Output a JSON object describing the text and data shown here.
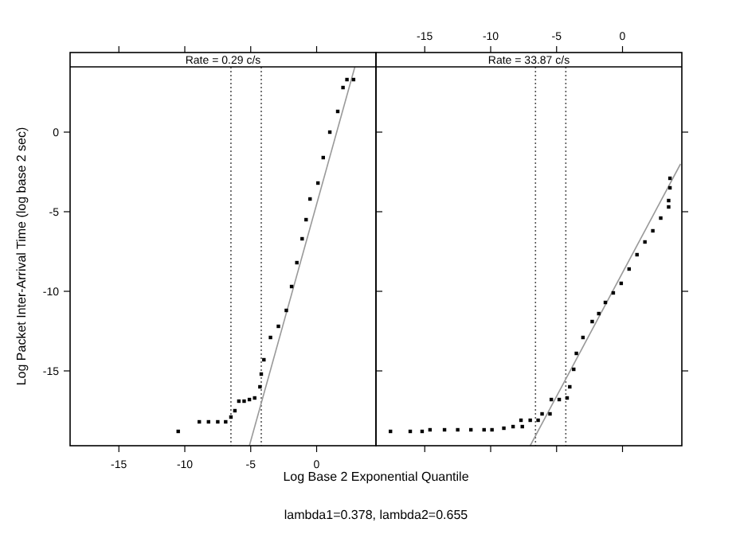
{
  "chart_data": [
    {
      "type": "scatter",
      "title": "Rate = 0.29 c/s",
      "xlabel": "Log Base 2 Exponential Quantile",
      "ylabel": "Log Packet Inter-Arrival Time (log base 2 sec)",
      "annotations": [
        "lambda1=0.378, lambda2=0.655"
      ],
      "xlim": [
        -18.7,
        4.5
      ],
      "ylim": [
        -19.7,
        4.1
      ],
      "xticks": [
        -15,
        -10,
        -5,
        0
      ],
      "yticks": [
        -15,
        -10,
        -5,
        0
      ],
      "grid": false,
      "marker": "square",
      "ref_lines": [
        {
          "axis": "x",
          "value": -6.5,
          "color": "#555555",
          "line_style": "dotted"
        },
        {
          "axis": "x",
          "value": -4.2,
          "color": "#555555",
          "line_style": "dotted"
        }
      ],
      "series": [
        {
          "color": "#000000",
          "x": [
            -10.5,
            -8.9,
            -8.2,
            -7.5,
            -6.9,
            -6.5,
            -6.2,
            -5.9,
            -5.5,
            -5.1,
            -4.7,
            -4.3,
            -4.2,
            -4.0,
            -3.5,
            -2.9,
            -2.3,
            -1.9,
            -1.5,
            -1.1,
            -0.8,
            -0.5,
            0.1,
            0.5,
            1.0,
            1.6,
            2.0,
            2.3,
            2.8
          ],
          "values": [
            -18.8,
            -18.2,
            -18.2,
            -18.2,
            -18.2,
            -17.9,
            -17.5,
            -16.9,
            -16.9,
            -16.8,
            -16.7,
            -16.0,
            -15.2,
            -14.3,
            -12.9,
            -12.2,
            -11.2,
            -9.7,
            -8.2,
            -6.7,
            -5.5,
            -4.2,
            -3.2,
            -1.6,
            0,
            1.3,
            2.8,
            3.3,
            3.3
          ]
        },
        {
          "type": "line",
          "color": "#999999",
          "marker": "none",
          "x": [
            -5.1,
            2.9
          ],
          "values": [
            -19.7,
            4.1
          ]
        }
      ]
    },
    {
      "type": "scatter",
      "title": "Rate = 33.87 c/s",
      "xlim": [
        -18.7,
        4.5
      ],
      "ylim": [
        -19.7,
        4.1
      ],
      "xticks": [
        -15,
        -10,
        -5,
        0
      ],
      "yticks": [
        -15,
        -10,
        -5,
        0
      ],
      "tick_labels": "x",
      "grid": false,
      "marker": "square",
      "ref_lines": [
        {
          "axis": "x",
          "value": -6.6,
          "color": "#555555",
          "line_style": "dotted"
        },
        {
          "axis": "x",
          "value": -4.3,
          "color": "#555555",
          "line_style": "dotted"
        }
      ],
      "series": [
        {
          "color": "#000000",
          "x": [
            -17.6,
            -16.1,
            -15.2,
            -14.6,
            -13.5,
            -12.5,
            -11.5,
            -10.5,
            -9.9,
            -9.0,
            -8.3,
            -7.6,
            -7.7,
            -7.0,
            -6.4,
            -6.1,
            -5.5,
            -5.4,
            -4.8,
            -4.2,
            -4.0,
            -3.7,
            -3.5,
            -3.0,
            -2.3,
            -1.8,
            -1.3,
            -0.7,
            -0.1,
            0.5,
            1.1,
            1.7,
            2.3,
            2.9,
            3.5,
            3.5,
            3.6,
            3.6
          ],
          "values": [
            -18.8,
            -18.8,
            -18.8,
            -18.7,
            -18.7,
            -18.7,
            -18.7,
            -18.7,
            -18.7,
            -18.6,
            -18.5,
            -18.5,
            -18.1,
            -18.1,
            -18.1,
            -17.7,
            -17.7,
            -16.8,
            -16.8,
            -16.7,
            -16.0,
            -14.9,
            -13.9,
            -12.9,
            -11.9,
            -11.4,
            -10.7,
            -10.1,
            -9.5,
            -8.6,
            -7.7,
            -6.9,
            -6.2,
            -5.4,
            -4.7,
            -4.3,
            -3.5,
            -2.9
          ]
        },
        {
          "type": "line",
          "color": "#999999",
          "marker": "none",
          "x": [
            -7.0,
            4.4
          ],
          "values": [
            -19.7,
            -2.0
          ]
        }
      ]
    }
  ]
}
